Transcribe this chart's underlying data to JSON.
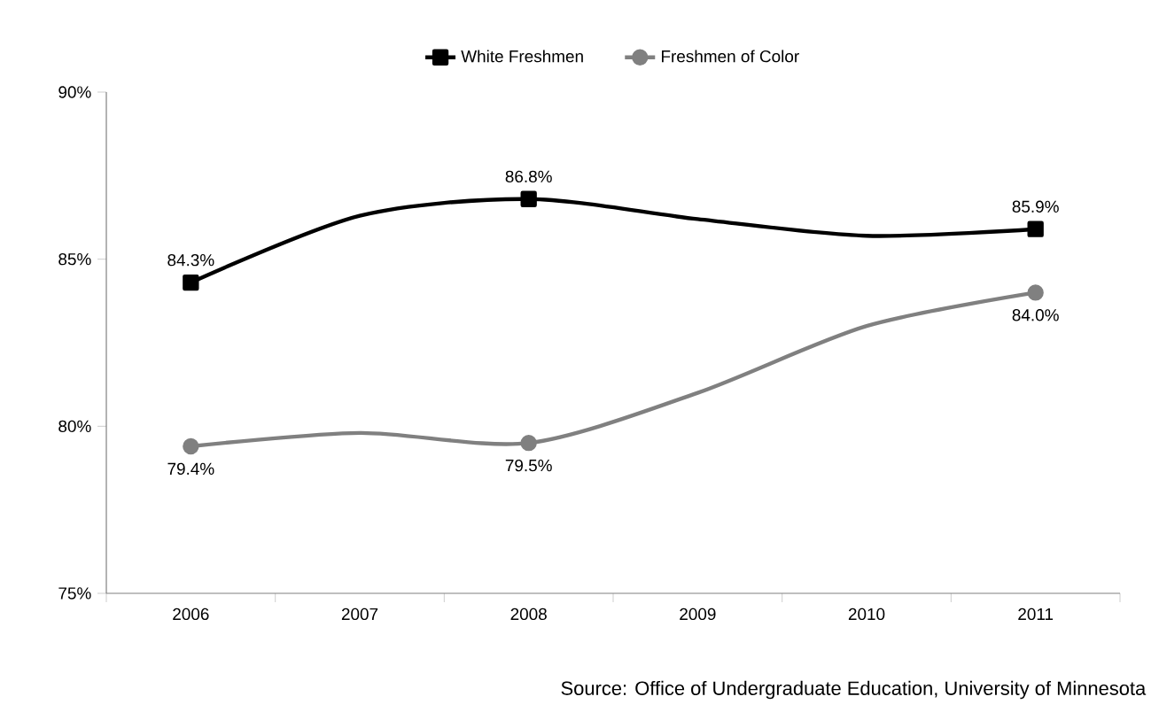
{
  "chart_data": {
    "type": "line",
    "categories": [
      "2006",
      "2007",
      "2008",
      "2009",
      "2010",
      "2011"
    ],
    "series": [
      {
        "name": "White Freshmen",
        "color": "#000000",
        "marker": "square",
        "values": [
          84.3,
          86.3,
          86.8,
          86.2,
          85.7,
          85.9
        ],
        "value_labels": [
          "84.3%",
          null,
          "86.8%",
          null,
          null,
          "85.9%"
        ]
      },
      {
        "name": "Freshmen of Color",
        "color": "#808080",
        "marker": "circle",
        "values": [
          79.4,
          79.8,
          79.5,
          81.0,
          83.0,
          84.0
        ],
        "value_labels": [
          "79.4%",
          null,
          "79.5%",
          null,
          null,
          "84.0%"
        ]
      }
    ],
    "ylim": [
      75,
      90
    ],
    "yticks": [
      {
        "value": 75,
        "label": "75%"
      },
      {
        "value": 80,
        "label": "80%"
      },
      {
        "value": 85,
        "label": "85%"
      },
      {
        "value": 90,
        "label": "90%"
      }
    ],
    "grid": false,
    "legend": "top",
    "line_style": "solid",
    "annotations": [
      "Source: Office of Undergraduate Education, University of Minnesota"
    ]
  }
}
